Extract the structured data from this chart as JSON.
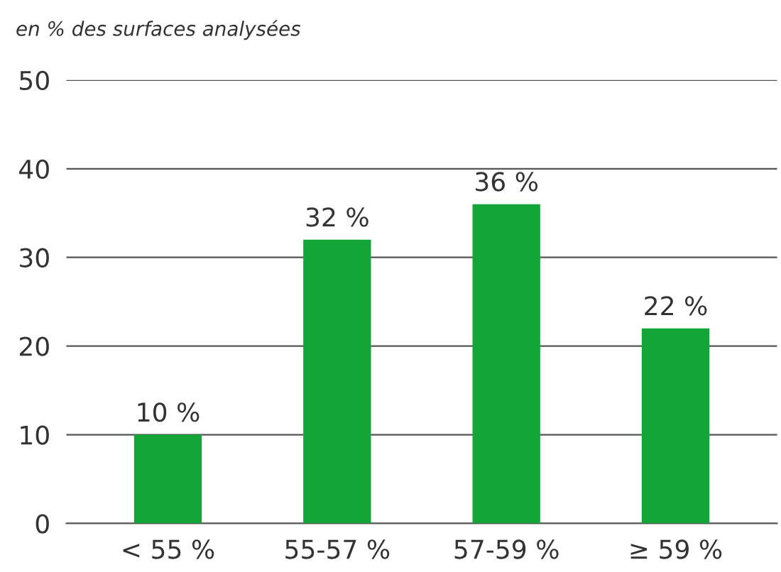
{
  "chart_data": {
    "type": "bar",
    "ylabel": "en % des surfaces analysées",
    "categories": [
      "< 55 %",
      "55-57 %",
      "57-59 %",
      "≥ 59 %"
    ],
    "values": [
      10,
      32,
      36,
      22
    ],
    "value_labels": [
      "10 %",
      "32 %",
      "36 %",
      "22 %"
    ],
    "color": "#13a538",
    "ylim": [
      0,
      50
    ],
    "yticks": [
      0,
      10,
      20,
      30,
      40,
      50
    ],
    "grid": "y",
    "legend": false
  }
}
